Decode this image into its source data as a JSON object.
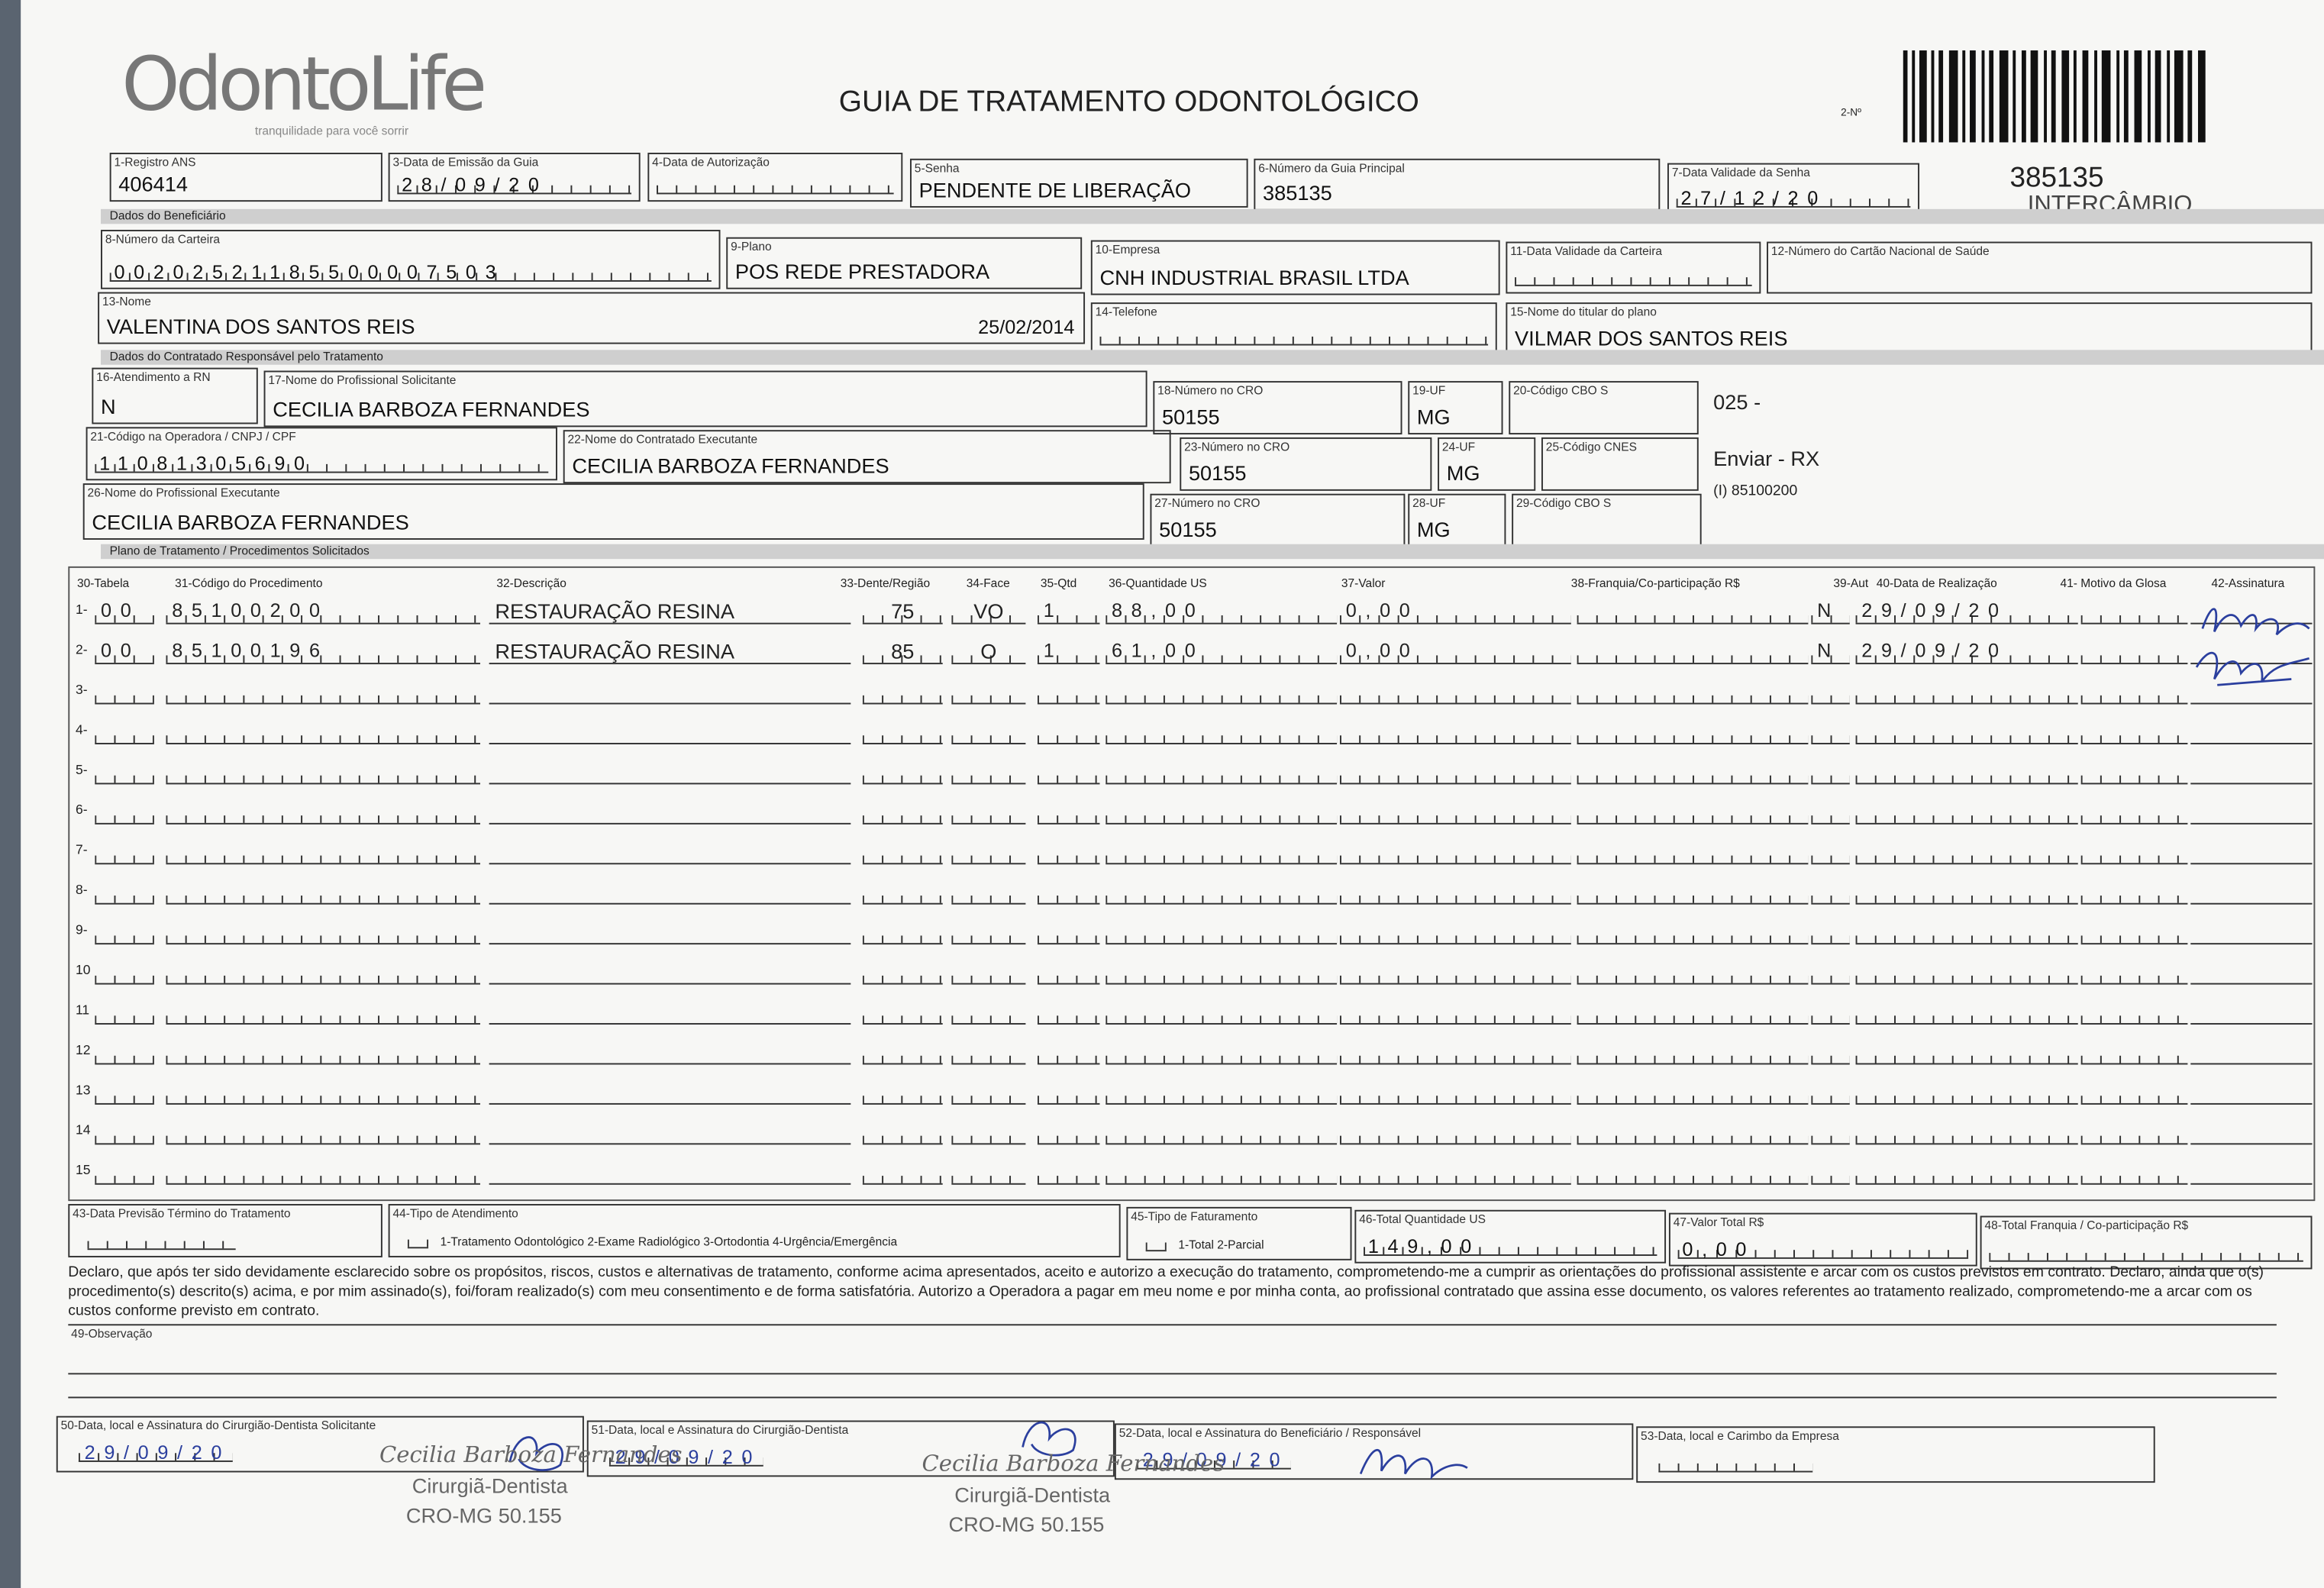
{
  "header": {
    "logo": "OdontoLife",
    "tagline": "tranquilidade para você sorrir",
    "title": "GUIA DE TRATAMENTO ODONTOLÓGICO",
    "number_label": "2-Nº",
    "number": "385135",
    "note": "INTERCÂMBIO"
  },
  "sections": [
    "Dados do Beneficiário",
    "Dados do Contratado Responsável pelo Tratamento",
    "Plano de Tratamento / Procedimentos Solicitados"
  ],
  "fields": [
    {
      "label": "1-Registro ANS",
      "value": "406414"
    },
    {
      "label": "3-Data de Emissão da Guia",
      "value": "28/09/20"
    },
    {
      "label": "4-Data de Autorização"
    },
    {
      "label": "5-Senha",
      "value": "PENDENTE DE LIBERAÇÃO"
    },
    {
      "label": "6-Número da Guia Principal",
      "value": "385135"
    },
    {
      "label": "7-Data Validade da Senha",
      "value": "27/12/20"
    },
    {
      "label": "8-Número da Carteira",
      "value": "00202521185500007503"
    },
    {
      "label": "9-Plano",
      "value": "POS REDE PRESTADORA"
    },
    {
      "label": "10-Empresa",
      "value": "CNH INDUSTRIAL BRASIL LTDA"
    },
    {
      "label": "11-Data Validade da Carteira"
    },
    {
      "label": "12-Número do Cartão Nacional de Saúde"
    },
    {
      "label": "13-Nome",
      "value": "VALENTINA DOS SANTOS REIS",
      "extra": "25/02/2014"
    },
    {
      "label": "14-Telefone"
    },
    {
      "label": "15-Nome do titular do plano",
      "value": "VILMAR DOS SANTOS REIS"
    },
    {
      "label": "16-Atendimento a RN",
      "value": "N"
    },
    {
      "label": "17-Nome do Profissional Solicitante",
      "value": "CECILIA BARBOZA FERNANDES"
    },
    {
      "label": "18-Número no CRO",
      "value": "50155"
    },
    {
      "label": "19-UF",
      "value": "MG"
    },
    {
      "label": "20-Código CBO S",
      "notes": [
        "025 -"
      ]
    },
    {
      "label": "21-Código na Operadora / CNPJ / CPF",
      "value": "11081305690"
    },
    {
      "label": "22-Nome do Contratado Executante",
      "value": "CECILIA BARBOZA FERNANDES"
    },
    {
      "label": "23-Número no CRO",
      "value": "50155"
    },
    {
      "label": "24-UF",
      "value": "MG"
    },
    {
      "label": "25-Código CNES",
      "notes": [
        "Enviar - RX",
        "(I) 85100200"
      ]
    },
    {
      "label": "26-Nome do Profissional Executante",
      "value": "CECILIA BARBOZA FERNANDES"
    },
    {
      "label": "27-Número no CRO",
      "value": "50155"
    },
    {
      "label": "28-UF",
      "value": "MG"
    },
    {
      "label": "29-Código CBO S"
    }
  ],
  "procedures": {
    "headers": [
      "30-Tabela",
      "31-Código do Procedimento",
      "32-Descrição",
      "33-Dente/Região",
      "34-Face",
      "35-Qtd",
      "36-Quantidade US",
      "37-Valor",
      "38-Franquia/Co-participação R$",
      "39-Aut",
      "40-Data de Realização",
      "41- Motivo da Glosa",
      "42-Assinatura"
    ],
    "row_numbers": [
      "1-",
      "2-",
      "3-",
      "4-",
      "5-",
      "6-",
      "7-",
      "8-",
      "9-",
      "10",
      "11",
      "12",
      "13",
      "14",
      "15"
    ],
    "rows": [
      {
        "table": "00",
        "code": "85100200",
        "description": "RESTAURAÇÃO RESINA",
        "tooth": "75",
        "face": "VO",
        "qty": "1",
        "us": "88,00",
        "value": "0,00",
        "aut": "N",
        "date": "29/09/20"
      },
      {
        "table": "00",
        "code": "85100196",
        "description": "RESTAURAÇÃO RESINA",
        "tooth": "85",
        "face": "O",
        "qty": "1",
        "us": "61,00",
        "value": "0,00",
        "aut": "N",
        "date": "29/09/20"
      }
    ]
  },
  "totals": [
    {
      "label": "43-Data Previsão Término do Tratamento"
    },
    {
      "label": "44-Tipo de Atendimento",
      "options": "1-Tratamento Odontológico  2-Exame Radiológico  3-Ortodontia  4-Urgência/Emergência"
    },
    {
      "label": "45-Tipo de Faturamento",
      "options": "1-Total  2-Parcial"
    },
    {
      "label": "46-Total Quantidade US",
      "value": "149,00"
    },
    {
      "label": "47-Valor Total R$",
      "value": "0,00"
    },
    {
      "label": "48-Total Franquia / Co-participação R$"
    }
  ],
  "declaration": "Declaro, que após ter sido devidamente esclarecido sobre os propósitos, riscos, custos e alternativas de tratamento, conforme acima apresentados, aceito e autorizo a execução do tratamento, comprometendo-me a cumprir as orientações do profissional assistente e arcar com os custos previstos em contrato. Declaro, ainda que o(s) procedimento(s) descrito(s) acima, e por mim assinado(s), foi/foram realizado(s) com meu consentimento e de forma satisfatória. Autorizo a Operadora a pagar em meu nome e por minha conta, ao profissional contratado que assina esse documento, os valores referentes ao tratamento realizado, comprometendo-me a arcar com os custos conforme previsto em contrato.",
  "observation_label": "49-Observação",
  "signatures": [
    {
      "label": "50-Data, local e Assinatura do Cirurgião-Dentista Solicitante",
      "value": "29/09/20"
    },
    {
      "label": "51-Data, local e Assinatura do Cirurgião-Dentista",
      "value": "29/09/20"
    },
    {
      "label": "52-Data, local e Assinatura do Beneficiário / Responsável",
      "value": "29/09/20"
    },
    {
      "label": "53-Data, local e Carimbo da Empresa"
    }
  ],
  "stamps": [
    {
      "name": "Cecilia Barboza Fernandes",
      "title": "Cirurgiã-Dentista",
      "cro": "CRO-MG 50.155"
    },
    {
      "name": "Cecilia Barboza Fernandes",
      "title": "Cirurgiã-Dentista",
      "cro": "CRO-MG 50.155"
    }
  ]
}
